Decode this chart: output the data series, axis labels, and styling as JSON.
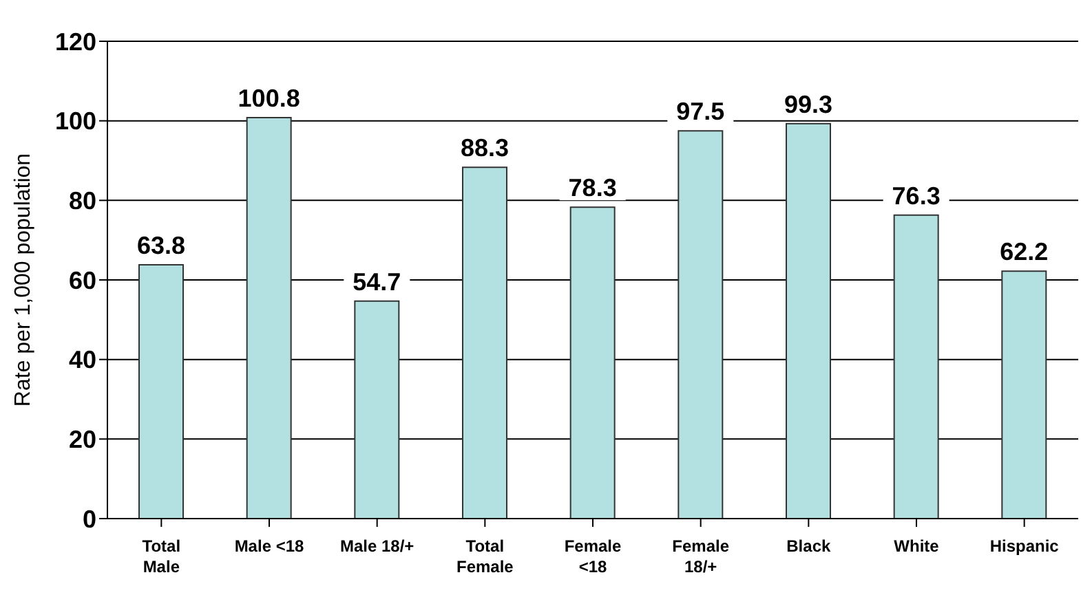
{
  "chart_data": {
    "type": "bar",
    "ylabel": "Rate per 1,000 population",
    "categories": [
      "Total Male",
      "Male <18",
      "Male 18/+",
      "Total Female",
      "Female <18",
      "Female 18/+",
      "Black",
      "White",
      "Hispanic"
    ],
    "values": [
      63.8,
      100.8,
      54.7,
      88.3,
      78.3,
      97.5,
      99.3,
      76.3,
      62.2
    ],
    "color": "#b3e0e0",
    "ylim": [
      0,
      120
    ],
    "yticks": [
      0,
      20,
      40,
      60,
      80,
      100,
      120
    ],
    "grid": "y",
    "data_labels": true
  }
}
